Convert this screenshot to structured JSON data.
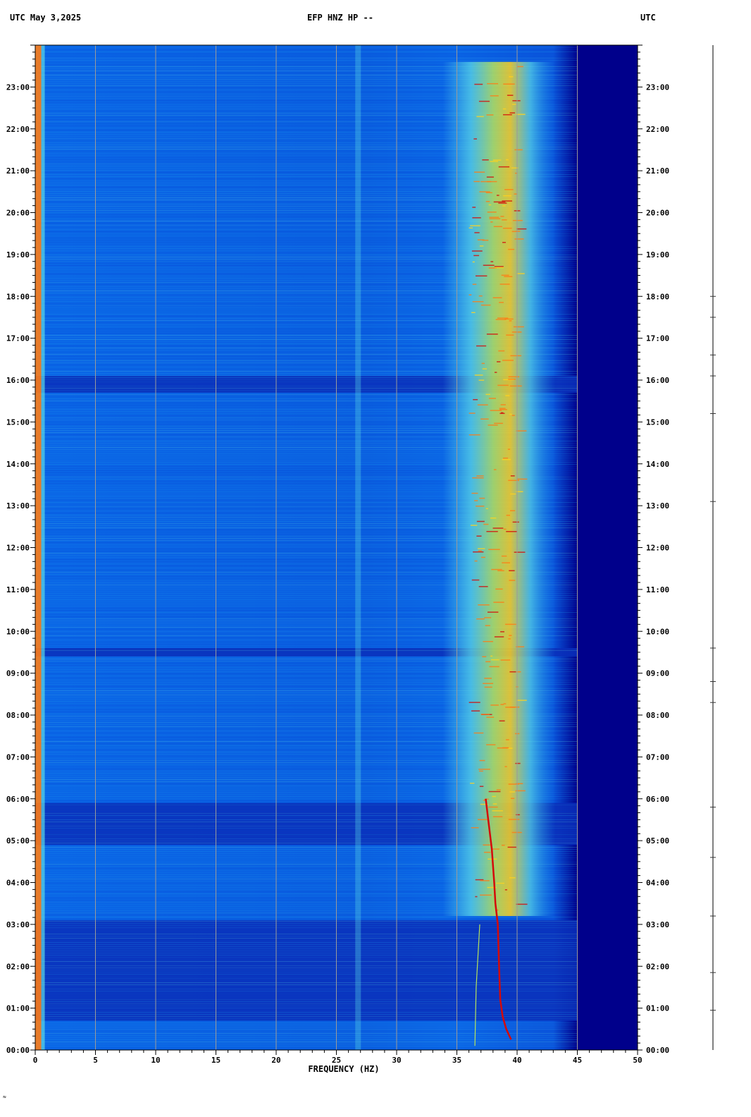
{
  "header": {
    "left": "UTC  May 3,2025",
    "center": "EFP HNZ HP --",
    "right": "UTC"
  },
  "footer_mark": "≈",
  "chart_data": {
    "type": "heatmap",
    "title": "EFP HNZ HP --",
    "date": "May 3,2025",
    "timezone": "UTC",
    "xlabel": "FREQUENCY (HZ)",
    "xlim": [
      0,
      50
    ],
    "x_ticks": [
      0,
      5,
      10,
      15,
      20,
      25,
      30,
      35,
      40,
      45,
      50
    ],
    "y_ticks_hours": [
      0,
      1,
      2,
      3,
      4,
      5,
      6,
      7,
      8,
      9,
      10,
      11,
      12,
      13,
      14,
      15,
      16,
      17,
      18,
      19,
      20,
      21,
      22,
      23
    ],
    "y_tick_labels": [
      "00:00",
      "01:00",
      "02:00",
      "03:00",
      "04:00",
      "05:00",
      "06:00",
      "07:00",
      "08:00",
      "09:00",
      "10:00",
      "11:00",
      "12:00",
      "13:00",
      "14:00",
      "15:00",
      "16:00",
      "17:00",
      "18:00",
      "19:00",
      "20:00",
      "21:00",
      "22:00",
      "23:00"
    ],
    "ylim_hours": [
      0,
      24
    ],
    "colormap": [
      "#00008b",
      "#0033cc",
      "#0a66e6",
      "#1fa3f0",
      "#5ad7e6",
      "#b7e35a",
      "#ffd21e",
      "#ff7a14",
      "#d40a0a"
    ],
    "features": {
      "low_freq_edge_hz": 0.5,
      "band_center_hz": 26.8,
      "energy_band_hz": [
        35,
        42
      ],
      "rolloff_hz": 45,
      "quiet_periods_hours": [
        [
          0.7,
          3.1
        ],
        [
          4.9,
          5.9
        ],
        [
          15.7,
          16.1
        ],
        [
          9.4,
          9.6
        ]
      ],
      "tonal_track": [
        {
          "t": 0.25,
          "f": 39.5
        },
        {
          "t": 0.5,
          "f": 39.1
        },
        {
          "t": 0.8,
          "f": 38.8
        },
        {
          "t": 1.2,
          "f": 38.6
        },
        {
          "t": 2.0,
          "f": 38.5
        },
        {
          "t": 3.0,
          "f": 38.4
        },
        {
          "t": 3.5,
          "f": 38.2
        },
        {
          "t": 4.0,
          "f": 38.1
        },
        {
          "t": 4.8,
          "f": 37.9
        },
        {
          "t": 5.5,
          "f": 37.6
        },
        {
          "t": 6.0,
          "f": 37.4
        }
      ],
      "secondary_track": [
        {
          "t": 0.1,
          "f": 36.5
        },
        {
          "t": 1.5,
          "f": 36.6
        },
        {
          "t": 3.0,
          "f": 36.9
        }
      ]
    }
  }
}
